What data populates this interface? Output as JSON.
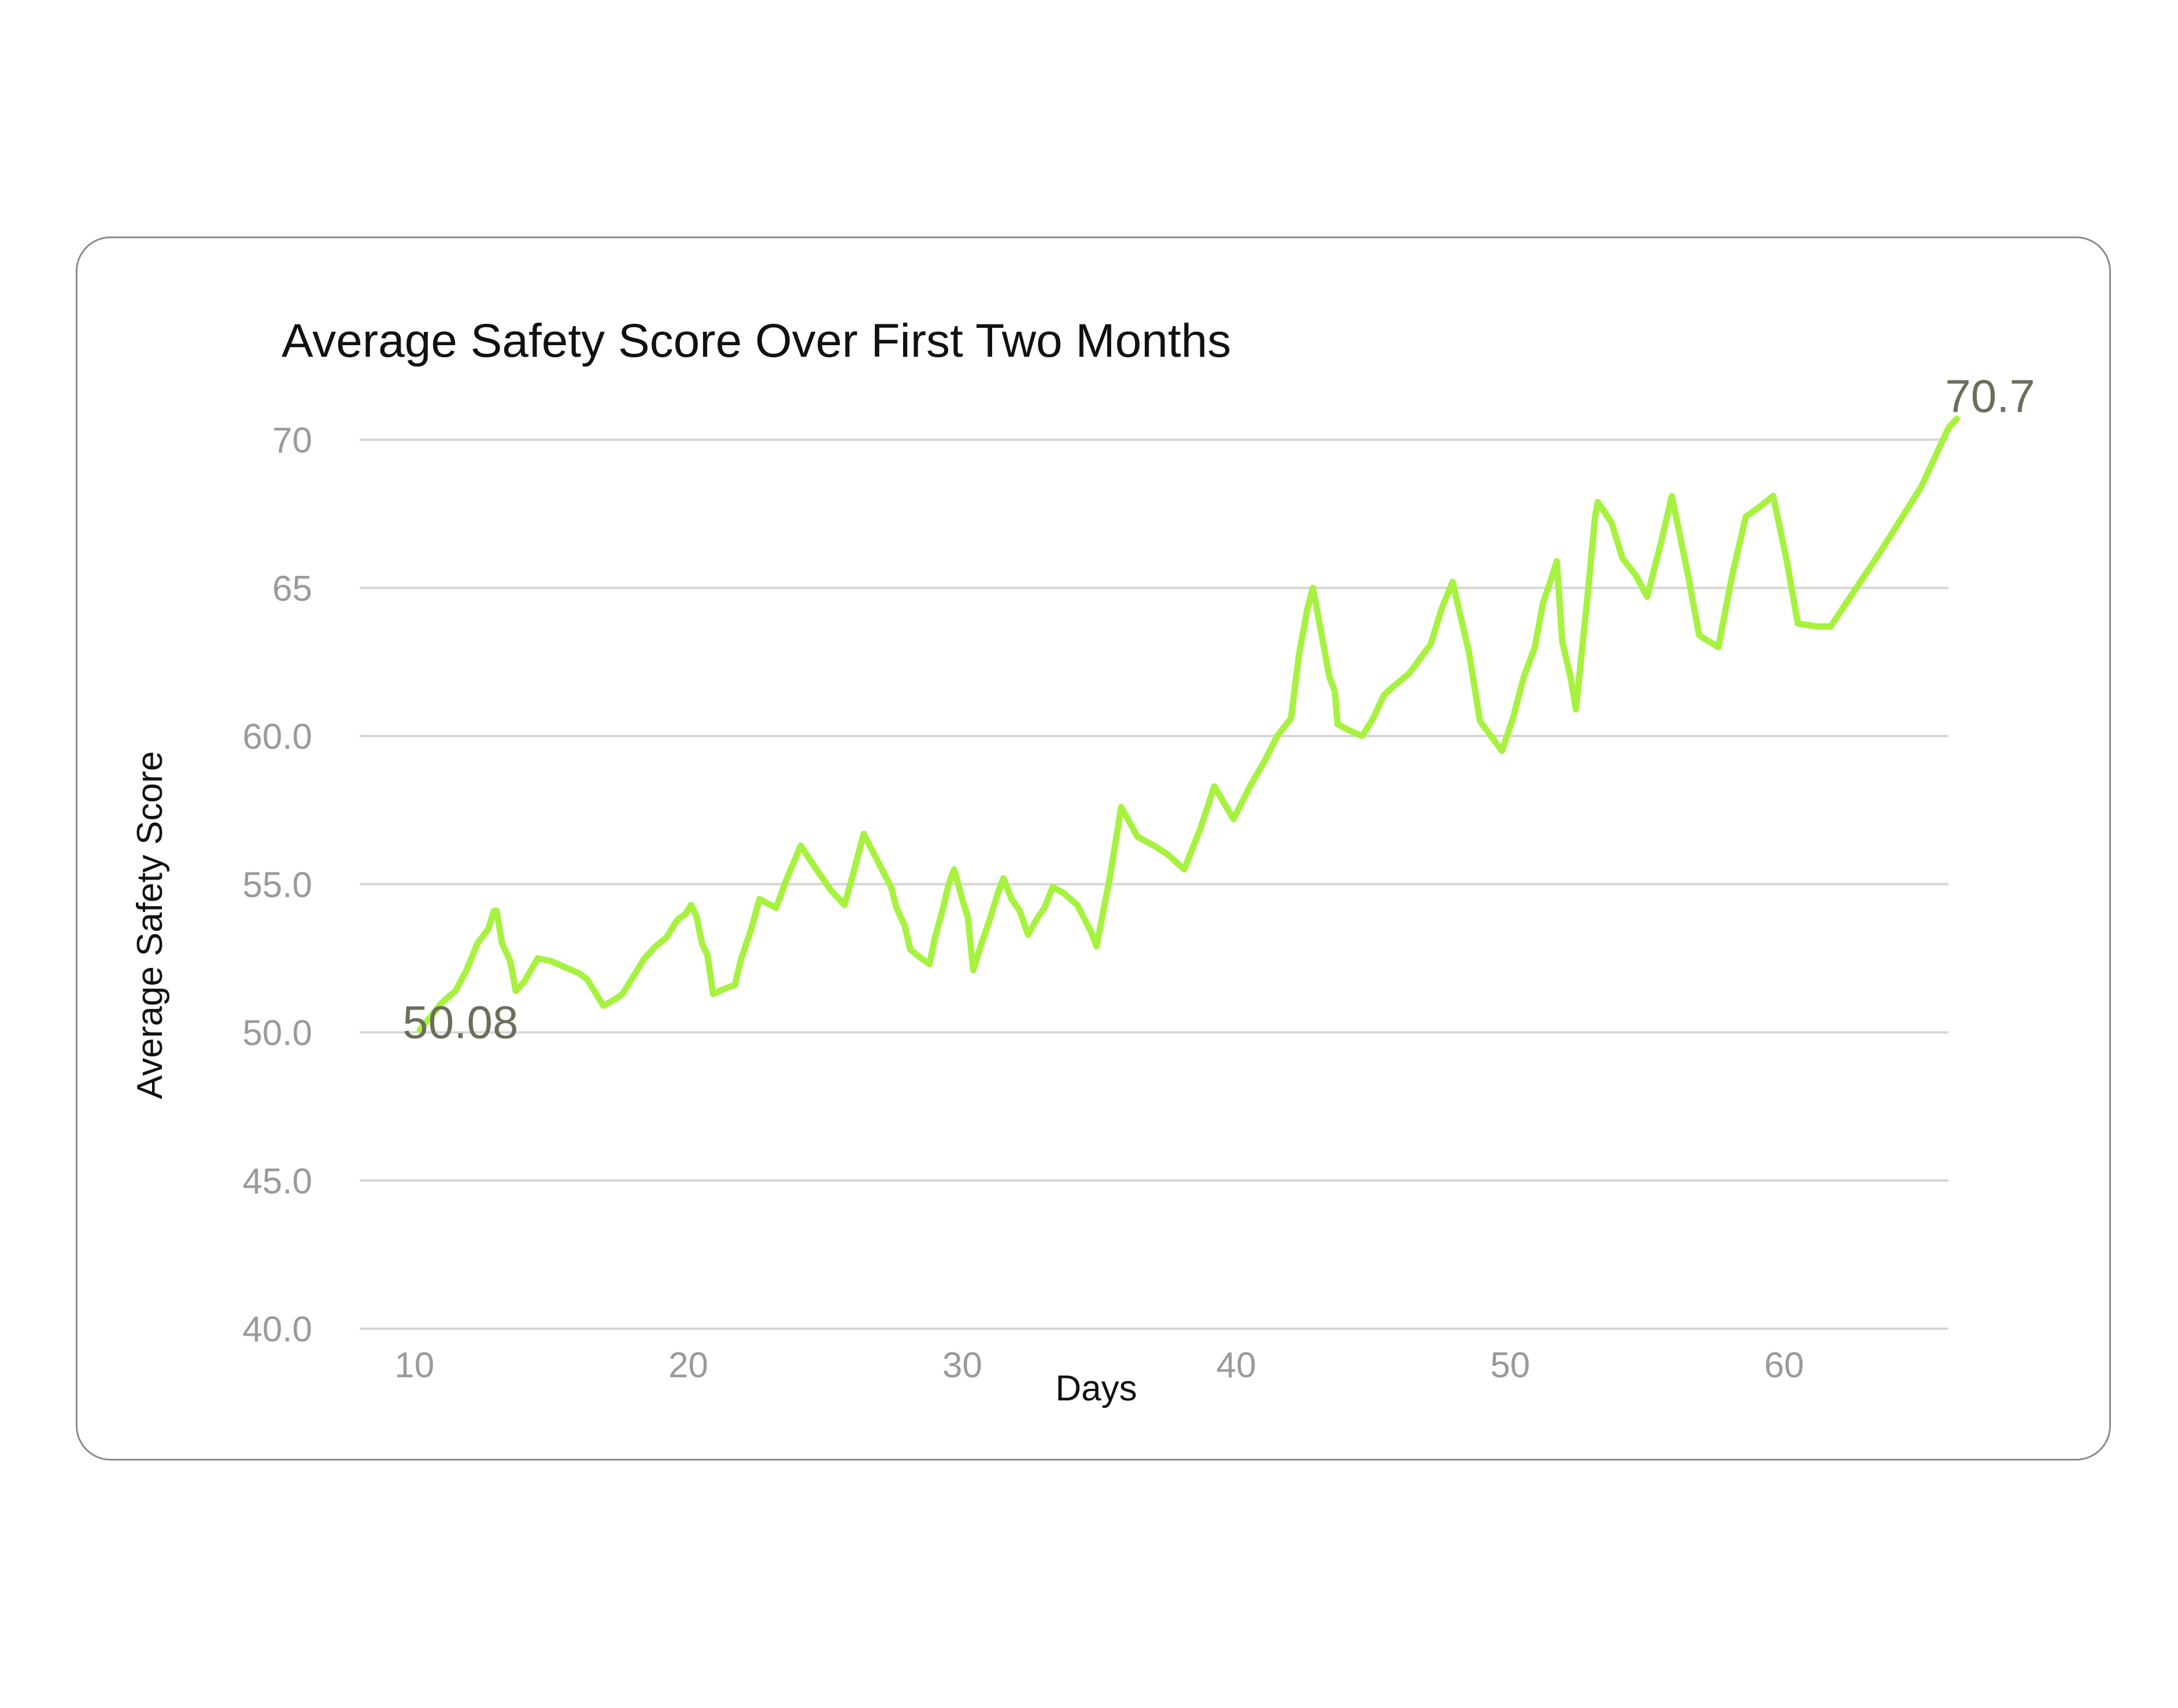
{
  "chart_data": {
    "type": "line",
    "title": "Average Safety Score Over First Two Months",
    "xlabel": "Days",
    "ylabel": "Average Safety Score",
    "xlim": [
      8,
      66
    ],
    "ylim": [
      40,
      72
    ],
    "x_ticks": [
      {
        "value": 10,
        "label": "10"
      },
      {
        "value": 20,
        "label": "20"
      },
      {
        "value": 30,
        "label": "30"
      },
      {
        "value": 40,
        "label": "40"
      },
      {
        "value": 50,
        "label": "50"
      },
      {
        "value": 60,
        "label": "60"
      }
    ],
    "y_ticks": [
      {
        "value": 40,
        "label": "40.0"
      },
      {
        "value": 45,
        "label": "45.0"
      },
      {
        "value": 50,
        "label": "50.0"
      },
      {
        "value": 55,
        "label": "55.0"
      },
      {
        "value": 60,
        "label": "60.0"
      },
      {
        "value": 65,
        "label": "65"
      },
      {
        "value": 70,
        "label": "70"
      }
    ],
    "grid": true,
    "line_color": "#a6f23f",
    "series": [
      {
        "name": "",
        "points": [
          [
            10.2,
            50.08
          ],
          [
            11.0,
            51.0
          ],
          [
            11.5,
            51.4
          ],
          [
            11.9,
            52.1
          ],
          [
            12.3,
            53.0
          ],
          [
            12.7,
            53.5
          ],
          [
            12.9,
            54.1
          ],
          [
            13.0,
            54.1
          ],
          [
            13.2,
            53.0
          ],
          [
            13.5,
            52.4
          ],
          [
            13.7,
            51.4
          ],
          [
            14.0,
            51.7
          ],
          [
            14.5,
            52.5
          ],
          [
            15.0,
            52.4
          ],
          [
            15.5,
            52.2
          ],
          [
            16.0,
            52.0
          ],
          [
            16.3,
            51.8
          ],
          [
            16.7,
            51.2
          ],
          [
            16.9,
            50.9
          ],
          [
            17.3,
            51.1
          ],
          [
            17.6,
            51.3
          ],
          [
            18.0,
            51.9
          ],
          [
            18.4,
            52.5
          ],
          [
            18.8,
            52.9
          ],
          [
            19.2,
            53.2
          ],
          [
            19.6,
            53.8
          ],
          [
            19.9,
            54.0
          ],
          [
            20.1,
            54.3
          ],
          [
            20.3,
            53.9
          ],
          [
            20.5,
            53.0
          ],
          [
            20.7,
            52.6
          ],
          [
            20.9,
            51.3
          ],
          [
            21.4,
            51.5
          ],
          [
            21.7,
            51.6
          ],
          [
            21.9,
            52.4
          ],
          [
            22.3,
            53.5
          ],
          [
            22.6,
            54.5
          ],
          [
            23.2,
            54.2
          ],
          [
            23.6,
            55.2
          ],
          [
            24.1,
            56.3
          ],
          [
            24.6,
            55.6
          ],
          [
            25.2,
            54.8
          ],
          [
            25.7,
            54.3
          ],
          [
            26.0,
            55.3
          ],
          [
            26.4,
            56.7
          ],
          [
            26.9,
            55.8
          ],
          [
            27.4,
            54.9
          ],
          [
            27.6,
            54.2
          ],
          [
            27.9,
            53.6
          ],
          [
            28.1,
            52.8
          ],
          [
            28.5,
            52.5
          ],
          [
            28.8,
            52.3
          ],
          [
            29.0,
            53.2
          ],
          [
            29.3,
            54.2
          ],
          [
            29.5,
            55.0
          ],
          [
            29.7,
            55.5
          ],
          [
            30.0,
            54.5
          ],
          [
            30.2,
            53.9
          ],
          [
            30.4,
            52.1
          ],
          [
            30.7,
            53.0
          ],
          [
            31.0,
            53.8
          ],
          [
            31.3,
            54.7
          ],
          [
            31.5,
            55.2
          ],
          [
            31.8,
            54.5
          ],
          [
            32.1,
            54.1
          ],
          [
            32.4,
            53.3
          ],
          [
            32.7,
            53.8
          ],
          [
            33.0,
            54.2
          ],
          [
            33.3,
            54.9
          ],
          [
            33.7,
            54.7
          ],
          [
            34.2,
            54.3
          ],
          [
            34.7,
            53.4
          ],
          [
            34.9,
            52.9
          ],
          [
            35.4,
            55.3
          ],
          [
            35.8,
            57.6
          ],
          [
            36.4,
            56.6
          ],
          [
            37.0,
            56.3
          ],
          [
            37.5,
            56.0
          ],
          [
            38.1,
            55.5
          ],
          [
            38.7,
            56.9
          ],
          [
            39.2,
            58.3
          ],
          [
            39.9,
            57.2
          ],
          [
            40.5,
            58.3
          ],
          [
            41.0,
            59.1
          ],
          [
            41.5,
            60.0
          ],
          [
            42.0,
            60.6
          ],
          [
            42.3,
            62.8
          ],
          [
            42.6,
            64.3
          ],
          [
            42.8,
            65.0
          ],
          [
            43.1,
            63.5
          ],
          [
            43.4,
            62.0
          ],
          [
            43.6,
            61.5
          ],
          [
            43.7,
            60.4
          ],
          [
            44.1,
            60.2
          ],
          [
            44.6,
            60.0
          ],
          [
            45.0,
            60.6
          ],
          [
            45.4,
            61.4
          ],
          [
            45.9,
            61.8
          ],
          [
            46.3,
            62.1
          ],
          [
            46.7,
            62.6
          ],
          [
            47.1,
            63.1
          ],
          [
            47.5,
            64.3
          ],
          [
            47.9,
            65.2
          ],
          [
            48.5,
            62.8
          ],
          [
            48.9,
            60.5
          ],
          [
            49.3,
            60.0
          ],
          [
            49.7,
            59.5
          ],
          [
            50.1,
            60.6
          ],
          [
            50.5,
            62.0
          ],
          [
            50.9,
            63.0
          ],
          [
            51.2,
            64.5
          ],
          [
            51.5,
            65.3
          ],
          [
            51.7,
            65.9
          ],
          [
            51.9,
            63.2
          ],
          [
            52.2,
            62.0
          ],
          [
            52.4,
            60.9
          ],
          [
            52.8,
            64.5
          ],
          [
            53.1,
            67.4
          ],
          [
            53.2,
            67.9
          ],
          [
            53.7,
            67.2
          ],
          [
            54.1,
            66.0
          ],
          [
            54.6,
            65.4
          ],
          [
            55.0,
            64.7
          ],
          [
            55.5,
            66.5
          ],
          [
            55.9,
            68.1
          ],
          [
            56.5,
            65.4
          ],
          [
            56.9,
            63.4
          ],
          [
            57.6,
            63.0
          ],
          [
            58.1,
            65.4
          ],
          [
            58.6,
            67.4
          ],
          [
            59.2,
            67.8
          ],
          [
            59.6,
            68.1
          ],
          [
            60.1,
            65.9
          ],
          [
            60.5,
            63.8
          ],
          [
            61.2,
            63.7
          ],
          [
            61.7,
            63.7
          ],
          [
            63.5,
            66.2
          ],
          [
            65.0,
            68.4
          ],
          [
            66.0,
            70.4
          ],
          [
            66.3,
            70.7
          ]
        ]
      }
    ],
    "annotations": [
      {
        "value": "50.08",
        "x": 10.2,
        "y": 50.08
      },
      {
        "value": "70.7",
        "x": 66.3,
        "y": 70.7
      }
    ]
  }
}
